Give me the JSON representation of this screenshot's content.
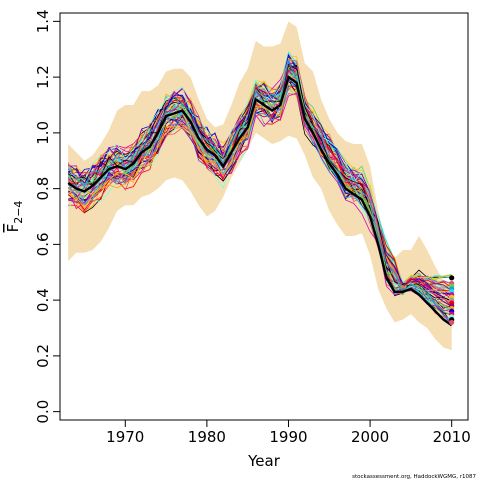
{
  "chart_data": {
    "type": "line",
    "title": "",
    "xlabel": "Year",
    "ylabel_main": "F",
    "ylabel_sub": "2−4",
    "xlim": [
      1962,
      2012
    ],
    "ylim": [
      -0.03,
      1.43
    ],
    "x_ticks": [
      1970,
      1980,
      1990,
      2000,
      2010
    ],
    "y_ticks": [
      0.0,
      0.2,
      0.4,
      0.6,
      0.8,
      1.0,
      1.2,
      1.4
    ],
    "y_tick_labels": [
      "0.0",
      "0.2",
      "0.4",
      "0.6",
      "0.8",
      "1.0",
      "1.2",
      "1.4"
    ],
    "grid": false,
    "legend": "none",
    "credit": "stockassessment.org, HaddockWGMG, r1087",
    "band_color": "#f5deb3",
    "years": [
      1963,
      1964,
      1965,
      1966,
      1967,
      1968,
      1969,
      1970,
      1971,
      1972,
      1973,
      1974,
      1975,
      1976,
      1977,
      1978,
      1979,
      1980,
      1981,
      1982,
      1983,
      1984,
      1985,
      1986,
      1987,
      1988,
      1989,
      1990,
      1991,
      1992,
      1993,
      1994,
      1995,
      1996,
      1997,
      1998,
      1999,
      2000,
      2001,
      2002,
      2003,
      2004,
      2005,
      2006,
      2007,
      2008,
      2009,
      2010
    ],
    "band": {
      "upper": [
        0.96,
        0.93,
        0.9,
        0.92,
        0.96,
        1.01,
        1.08,
        1.1,
        1.1,
        1.15,
        1.15,
        1.17,
        1.22,
        1.23,
        1.23,
        1.2,
        1.12,
        1.05,
        1.02,
        1.03,
        1.1,
        1.18,
        1.23,
        1.33,
        1.31,
        1.31,
        1.32,
        1.4,
        1.38,
        1.25,
        1.22,
        1.12,
        1.05,
        1.0,
        0.97,
        0.96,
        0.96,
        0.88,
        0.72,
        0.6,
        0.55,
        0.58,
        0.58,
        0.63,
        0.58,
        0.52,
        0.47,
        0.46
      ],
      "lower": [
        0.54,
        0.57,
        0.57,
        0.58,
        0.61,
        0.66,
        0.72,
        0.74,
        0.74,
        0.77,
        0.78,
        0.8,
        0.83,
        0.84,
        0.83,
        0.79,
        0.74,
        0.7,
        0.72,
        0.77,
        0.84,
        0.89,
        0.94,
        1.0,
        0.98,
        0.96,
        0.97,
        0.99,
        0.98,
        0.92,
        0.84,
        0.8,
        0.72,
        0.67,
        0.63,
        0.63,
        0.64,
        0.56,
        0.44,
        0.37,
        0.32,
        0.33,
        0.35,
        0.32,
        0.3,
        0.26,
        0.23,
        0.22
      ]
    },
    "series": [
      {
        "role": "current",
        "color": "#000000",
        "values": [
          0.82,
          0.8,
          0.79,
          0.81,
          0.84,
          0.87,
          0.88,
          0.87,
          0.89,
          0.93,
          0.95,
          1.0,
          1.06,
          1.07,
          1.08,
          1.04,
          0.98,
          0.94,
          0.92,
          0.88,
          0.93,
          0.98,
          1.02,
          1.12,
          1.1,
          1.08,
          1.1,
          1.2,
          1.18,
          1.05,
          1.0,
          0.94,
          0.89,
          0.85,
          0.8,
          0.78,
          0.76,
          0.7,
          0.6,
          0.48,
          0.43,
          0.43,
          0.44,
          0.42,
          0.39,
          0.36,
          0.33,
          0.31
        ]
      }
    ],
    "retro_palette": [
      "#000000",
      "#df536b",
      "#61d04f",
      "#2297e6",
      "#28e2e5",
      "#cd0bbc",
      "#f5c710",
      "#9e9e9e",
      "#ff0000",
      "#8b008b",
      "#ffa500",
      "#0000cd",
      "#e6007e",
      "#7fffd4"
    ],
    "retro_runs": 60,
    "retro_end_points": [
      0.48,
      0.46,
      0.45,
      0.44,
      0.43,
      0.42,
      0.41,
      0.4,
      0.39,
      0.38,
      0.37,
      0.36,
      0.35,
      0.34,
      0.33,
      0.32
    ]
  }
}
